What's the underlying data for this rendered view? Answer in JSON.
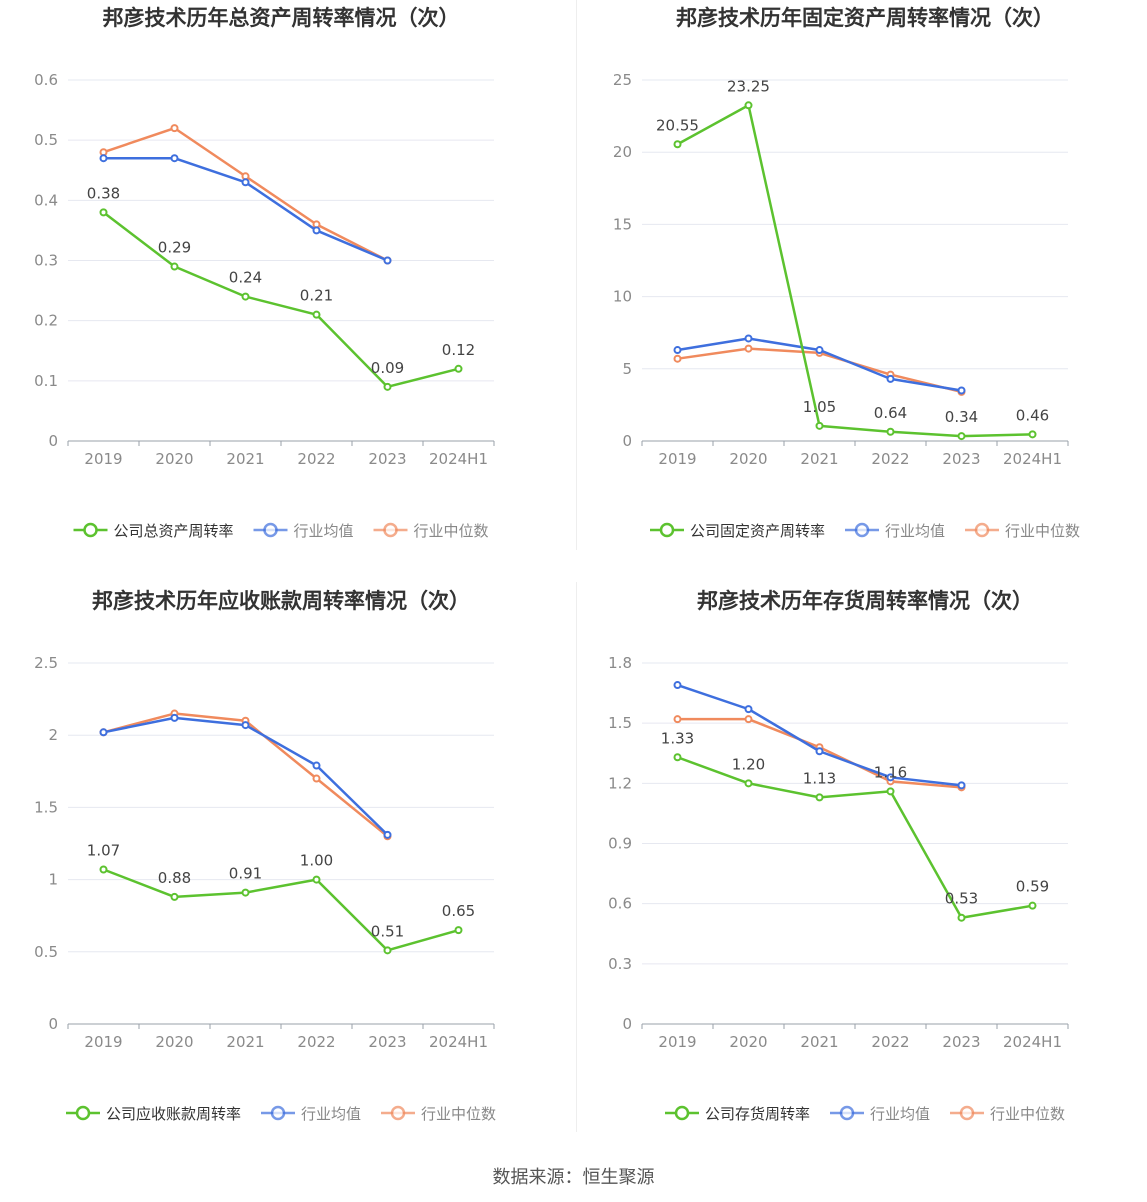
{
  "source_label": "数据来源：恒生聚源",
  "colors": {
    "company": "#5cc22f",
    "avg": "#3e6fde",
    "median": "#f08a5d"
  },
  "chart_data": [
    {
      "type": "line",
      "title": "邦彦技术历年总资产周转率情况（次）",
      "categories": [
        "2019",
        "2020",
        "2021",
        "2022",
        "2023",
        "2024H1"
      ],
      "ylim": [
        0,
        0.6
      ],
      "yticks": [
        "0",
        "0.1",
        "0.2",
        "0.3",
        "0.4",
        "0.5",
        "0.6"
      ],
      "series": [
        {
          "name": "公司总资产周转率",
          "values": [
            0.38,
            0.29,
            0.24,
            0.21,
            0.09,
            0.12
          ],
          "labels": [
            "0.38",
            "0.29",
            "0.24",
            "0.21",
            "0.09",
            "0.12"
          ]
        },
        {
          "name": "行业均值",
          "values": [
            0.47,
            0.47,
            0.43,
            0.35,
            0.3,
            null
          ]
        },
        {
          "name": "行业中位数",
          "values": [
            0.48,
            0.52,
            0.44,
            0.36,
            0.3,
            null
          ]
        }
      ]
    },
    {
      "type": "line",
      "title": "邦彦技术历年固定资产周转率情况（次）",
      "categories": [
        "2019",
        "2020",
        "2021",
        "2022",
        "2023",
        "2024H1"
      ],
      "ylim": [
        0,
        25
      ],
      "yticks": [
        "0",
        "5",
        "10",
        "15",
        "20",
        "25"
      ],
      "series": [
        {
          "name": "公司固定资产周转率",
          "values": [
            20.55,
            23.25,
            1.05,
            0.64,
            0.34,
            0.46
          ],
          "labels": [
            "20.55",
            "23.25",
            "1.05",
            "0.64",
            "0.34",
            "0.46"
          ]
        },
        {
          "name": "行业均值",
          "values": [
            6.3,
            7.1,
            6.3,
            4.3,
            3.5,
            null
          ]
        },
        {
          "name": "行业中位数",
          "values": [
            5.7,
            6.4,
            6.1,
            4.6,
            3.4,
            null
          ]
        }
      ]
    },
    {
      "type": "line",
      "title": "邦彦技术历年应收账款周转率情况（次）",
      "categories": [
        "2019",
        "2020",
        "2021",
        "2022",
        "2023",
        "2024H1"
      ],
      "ylim": [
        0,
        2.5
      ],
      "yticks": [
        "0",
        "0.5",
        "1",
        "1.5",
        "2",
        "2.5"
      ],
      "series": [
        {
          "name": "公司应收账款周转率",
          "values": [
            1.07,
            0.88,
            0.91,
            1.0,
            0.51,
            0.65
          ],
          "labels": [
            "1.07",
            "0.88",
            "0.91",
            "1.00",
            "0.51",
            "0.65"
          ]
        },
        {
          "name": "行业均值",
          "values": [
            2.02,
            2.12,
            2.07,
            1.79,
            1.31,
            null
          ]
        },
        {
          "name": "行业中位数",
          "values": [
            2.02,
            2.15,
            2.1,
            1.7,
            1.3,
            null
          ]
        }
      ]
    },
    {
      "type": "line",
      "title": "邦彦技术历年存货周转率情况（次）",
      "categories": [
        "2019",
        "2020",
        "2021",
        "2022",
        "2023",
        "2024H1"
      ],
      "ylim": [
        0,
        1.8
      ],
      "yticks": [
        "0",
        "0.3",
        "0.6",
        "0.9",
        "1.2",
        "1.5",
        "1.8"
      ],
      "series": [
        {
          "name": "公司存货周转率",
          "values": [
            1.33,
            1.2,
            1.13,
            1.16,
            0.53,
            0.59
          ],
          "labels": [
            "1.33",
            "1.20",
            "1.13",
            "1.16",
            "0.53",
            "0.59"
          ]
        },
        {
          "name": "行业均值",
          "values": [
            1.69,
            1.57,
            1.36,
            1.23,
            1.19,
            null
          ]
        },
        {
          "name": "行业中位数",
          "values": [
            1.52,
            1.52,
            1.38,
            1.21,
            1.18,
            null
          ]
        }
      ]
    }
  ]
}
